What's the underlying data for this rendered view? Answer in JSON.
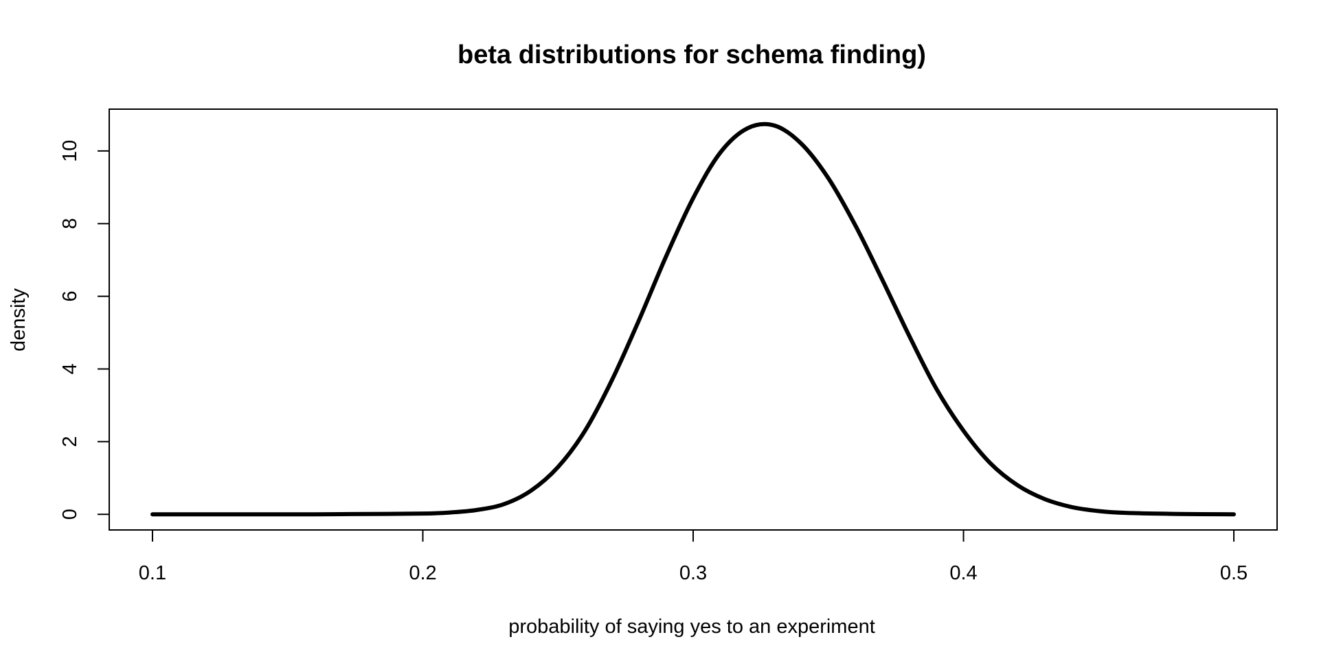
{
  "chart_data": {
    "type": "line",
    "title": "beta distributions for schema finding)",
    "xlabel": "probability of saying yes to an experiment",
    "ylabel": "density",
    "xlim": [
      0.084,
      0.516
    ],
    "ylim": [
      -0.43,
      11.15
    ],
    "x_ticks": [
      0.1,
      0.2,
      0.3,
      0.4,
      0.5
    ],
    "x_tick_labels": [
      "0.1",
      "0.2",
      "0.3",
      "0.4",
      "0.5"
    ],
    "y_ticks": [
      0,
      2,
      4,
      6,
      8,
      10
    ],
    "y_tick_labels": [
      "0",
      "2",
      "4",
      "6",
      "8",
      "10"
    ],
    "grid": false,
    "legend": "none",
    "series": [
      {
        "color": "#000000",
        "x": [
          0.1,
          0.12,
          0.14,
          0.16,
          0.18,
          0.2,
          0.21,
          0.22,
          0.23,
          0.24,
          0.25,
          0.26,
          0.27,
          0.28,
          0.29,
          0.3,
          0.31,
          0.32,
          0.33,
          0.34,
          0.35,
          0.36,
          0.37,
          0.38,
          0.39,
          0.4,
          0.41,
          0.42,
          0.43,
          0.44,
          0.45,
          0.46,
          0.48,
          0.5
        ],
        "y": [
          0.0,
          0.0,
          0.0,
          0.0,
          0.01,
          0.02,
          0.05,
          0.12,
          0.28,
          0.65,
          1.3,
          2.3,
          3.7,
          5.35,
          7.1,
          8.7,
          9.95,
          10.62,
          10.7,
          10.2,
          9.25,
          7.95,
          6.45,
          4.9,
          3.45,
          2.3,
          1.4,
          0.8,
          0.42,
          0.2,
          0.09,
          0.04,
          0.01,
          0.0
        ]
      }
    ]
  }
}
